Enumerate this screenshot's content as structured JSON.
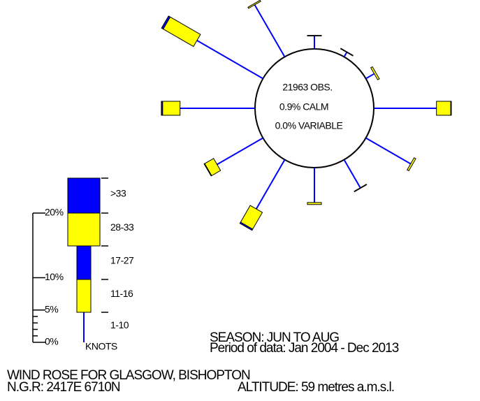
{
  "chart_data": {
    "type": "windrose",
    "title": "WIND ROSE FOR GLASGOW, BISHOPTON",
    "grid_ref": "N.G.R: 2417E 6710N",
    "altitude": "ALTITUDE:   59 metres a.m.s.l.",
    "season": "SEASON: JUN TO AUG",
    "period": "Period of data: Jan 2004 - Dec 2013",
    "center_labels": [
      "21963 OBS.",
      "0.9% CALM",
      "0.0% VARIABLE"
    ],
    "x": [
      0,
      30,
      60,
      90,
      120,
      150,
      180,
      210,
      240,
      270,
      300,
      330
    ],
    "series": [
      {
        "name": "1-10",
        "color": "#0000ff",
        "values": [
          2.0,
          0.8,
          1.5,
          9.7,
          8.0,
          5.0,
          5.4,
          8.8,
          8.2,
          11.6,
          11.8,
          9.3
        ]
      },
      {
        "name": "11-16",
        "color": "#ffff00",
        "values": [
          0.1,
          0.1,
          0.3,
          2.2,
          0.3,
          0.1,
          0.3,
          3.0,
          1.6,
          2.7,
          5.4,
          0.2
        ]
      },
      {
        "name": "17-27",
        "color": "#0000ff",
        "values": [
          0,
          0,
          0,
          0.1,
          0,
          0,
          0,
          0.2,
          0.1,
          0.2,
          0.3,
          0
        ]
      },
      {
        "name": "28-33",
        "color": "#ffff00",
        "values": [
          0,
          0,
          0,
          0,
          0,
          0,
          0,
          0,
          0,
          0,
          0,
          0
        ]
      },
      {
        "name": ">33",
        "color": "#0000ff",
        "values": [
          0,
          0,
          0,
          0,
          0,
          0,
          0,
          0,
          0,
          0,
          0,
          0
        ]
      }
    ],
    "legend_unit": "KNOTS",
    "scale_ticks": [
      {
        "value": 0,
        "label": "0%"
      },
      {
        "value": 5,
        "label": "5%"
      },
      {
        "value": 10,
        "label": "10%"
      },
      {
        "value": 20,
        "label": "20%"
      }
    ],
    "scale_minor_ticks": [
      1,
      2,
      3,
      4
    ]
  }
}
